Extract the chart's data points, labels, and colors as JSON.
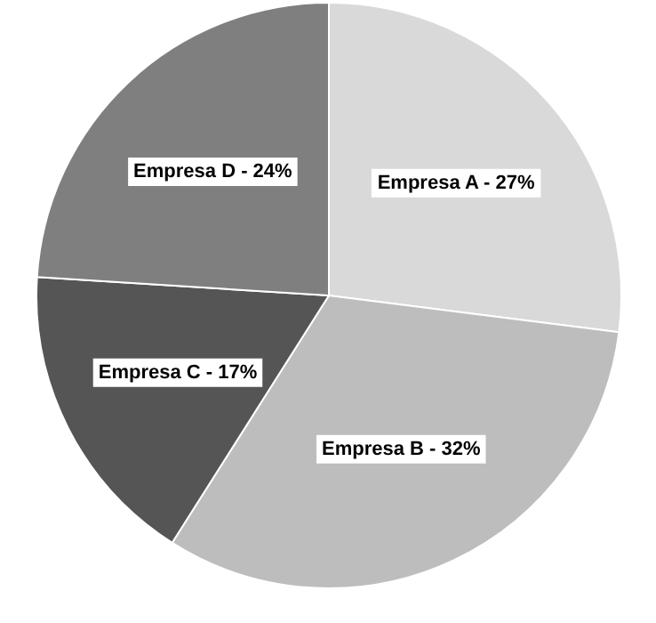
{
  "chart_data": {
    "type": "pie",
    "categories": [
      "Empresa A - 27%",
      "Empresa B - 32%",
      "Empresa C - 17%",
      "Empresa D - 24%"
    ],
    "values": [
      27,
      32,
      17,
      24
    ],
    "colors": [
      "#d9d9d9",
      "#bdbdbd",
      "#555555",
      "#7f7f7f"
    ],
    "legend": false
  }
}
